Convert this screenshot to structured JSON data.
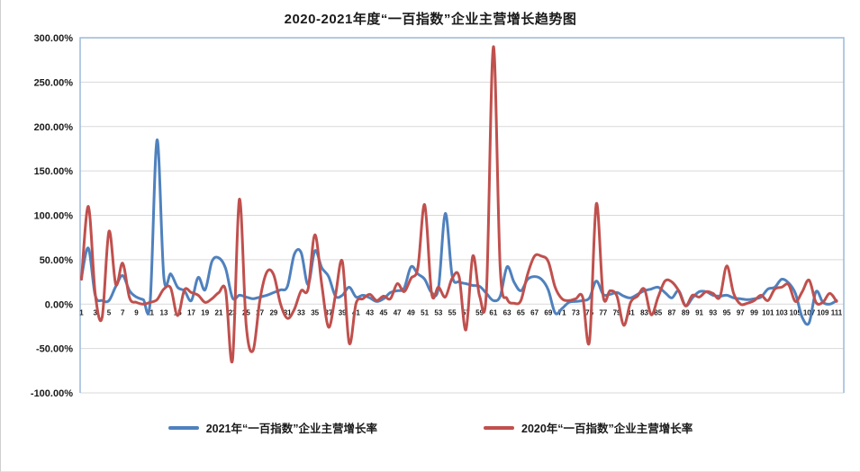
{
  "page": {
    "background": "#FFFFFF"
  },
  "chart_data": {
    "type": "line",
    "title": "2020-2021年度“一百指数”企业主营增长趋势图",
    "legend_position": "bottom",
    "grid": "horizontal",
    "grid_color": "#D9D9D9",
    "plot_border_color": "#9CB9DC",
    "axis_text_color": "#1a1a1a",
    "y_axis": {
      "min": -100,
      "max": 300,
      "step": 50,
      "unit": "%",
      "tick_labels": [
        "300.00%",
        "250.00%",
        "200.00%",
        "150.00%",
        "100.00%",
        "50.00%",
        "0.00%",
        "-50.00%",
        "-100.00%"
      ]
    },
    "x_axis": {
      "first": 1,
      "last": 111,
      "label_interval": 2,
      "tick_labels": [
        "1",
        "3",
        "5",
        "7",
        "9",
        "11",
        "13",
        "15",
        "17",
        "19",
        "21",
        "23",
        "25",
        "27",
        "29",
        "31",
        "33",
        "35",
        "37",
        "39",
        "41",
        "43",
        "45",
        "47",
        "49",
        "51",
        "53",
        "55",
        "57",
        "59",
        "61",
        "63",
        "65",
        "67",
        "69",
        "71",
        "73",
        "75",
        "77",
        "79",
        "81",
        "83",
        "85",
        "87",
        "89",
        "91",
        "93",
        "95",
        "97",
        "99",
        "101",
        "103",
        "105",
        "107",
        "109",
        "111"
      ]
    },
    "series": [
      {
        "name": "2021年“一百指数”企业主营增长率",
        "color": "#4F81BD",
        "values": [
          30,
          63,
          10,
          4,
          4,
          20,
          32,
          15,
          8,
          5,
          2,
          185,
          30,
          34,
          19,
          15,
          4,
          30,
          16,
          48,
          52,
          40,
          7,
          10,
          8,
          6,
          8,
          10,
          13,
          16,
          20,
          56,
          58,
          22,
          60,
          41,
          31,
          9,
          10,
          19,
          8,
          10,
          7,
          3,
          6,
          13,
          15,
          18,
          42,
          34,
          28,
          13,
          18,
          102,
          32,
          25,
          23,
          21,
          20,
          12,
          4,
          9,
          42,
          25,
          15,
          28,
          31,
          28,
          16,
          -10,
          -5,
          2,
          3,
          4,
          7,
          26,
          11,
          11,
          13,
          9,
          7,
          11,
          15,
          17,
          19,
          13,
          7,
          15,
          -2,
          7,
          14,
          14,
          10,
          9,
          10,
          7,
          6,
          5,
          6,
          8,
          17,
          19,
          28,
          24,
          12,
          -15,
          -21,
          14,
          2,
          0,
          4
        ]
      },
      {
        "name": "2020年“一百指数”企业主营增长率",
        "color": "#C0504D",
        "values": [
          28,
          110,
          12,
          -15,
          82,
          22,
          46,
          7,
          2,
          0,
          2,
          5,
          17,
          18,
          -13,
          16,
          13,
          10,
          2,
          6,
          13,
          15,
          -63,
          118,
          -24,
          -52,
          5,
          36,
          33,
          0,
          -16,
          -6,
          15,
          17,
          78,
          22,
          -26,
          10,
          48,
          -44,
          1,
          6,
          11,
          4,
          9,
          6,
          23,
          14,
          29,
          41,
          112,
          12,
          19,
          8,
          29,
          31,
          -29,
          54,
          9,
          15,
          290,
          40,
          6,
          1,
          4,
          34,
          54,
          54,
          48,
          19,
          6,
          4,
          6,
          8,
          -42,
          113,
          9,
          15,
          9,
          -24,
          2,
          9,
          17,
          -12,
          8,
          26,
          25,
          15,
          -2,
          10,
          8,
          14,
          12,
          8,
          43,
          12,
          0,
          1,
          4,
          10,
          4,
          17,
          19,
          22,
          3,
          14,
          27,
          2,
          2,
          12,
          3
        ]
      }
    ]
  }
}
